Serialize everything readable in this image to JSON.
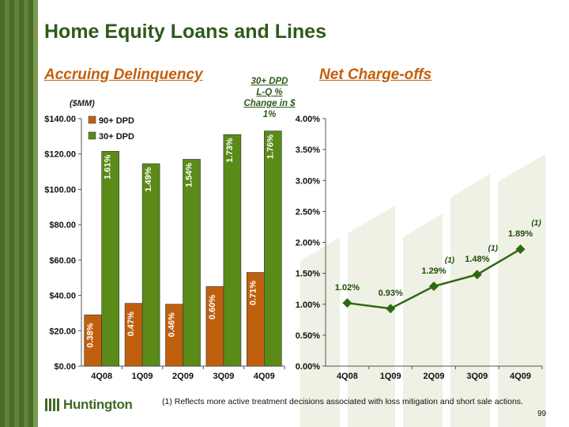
{
  "title": "Home Equity Loans and Lines",
  "left_subtitle": "Accruing Delinquency",
  "right_subtitle": "Net Charge-offs",
  "dpd_note": [
    "30+ DPD",
    "L-Q %",
    "Change in $",
    "1%"
  ],
  "units_label": "($MM)",
  "footnote": "(1) Reflects more active treatment decisions associated with loss mitigation and short sale actions.",
  "page_number": "99",
  "logo_text": "Huntington",
  "colors": {
    "orange": "#c0600f",
    "green": "#5a8a18",
    "title_green": "#2e5a1c",
    "subtitle_orange": "#c45f0a"
  },
  "chart_data": [
    {
      "type": "bar",
      "categories": [
        "4Q08",
        "1Q09",
        "2Q09",
        "3Q09",
        "4Q09"
      ],
      "ylim": [
        0,
        140
      ],
      "y_ticks": [
        "$0.00",
        "$20.00",
        "$40.00",
        "$60.00",
        "$80.00",
        "$100.00",
        "$120.00",
        "$140.00"
      ],
      "legend": "top-left",
      "series": [
        {
          "name": "90+ DPD",
          "values": [
            29,
            35.5,
            35,
            45,
            53
          ],
          "labels": [
            "0.38%",
            "0.47%",
            "0.46%",
            "0.60%",
            "0.71%"
          ],
          "color": "#c0600f"
        },
        {
          "name": "30+ DPD",
          "values": [
            121.5,
            114.5,
            117,
            131,
            133
          ],
          "labels": [
            "1.61%",
            "1.49%",
            "1.54%",
            "1.73%",
            "1.76%"
          ],
          "color": "#5a8a18"
        }
      ]
    },
    {
      "type": "line",
      "categories": [
        "4Q08",
        "1Q09",
        "2Q09",
        "3Q09",
        "4Q09"
      ],
      "values": [
        1.02,
        0.93,
        1.29,
        1.48,
        1.89
      ],
      "labels": [
        "1.02%",
        "0.93%",
        "1.29%",
        "1.48%",
        "1.89%"
      ],
      "footnote_marks": [
        "",
        "",
        "(1)",
        "(1)",
        "(1)"
      ],
      "ylim": [
        0,
        4
      ],
      "y_ticks": [
        "0.00%",
        "0.50%",
        "1.00%",
        "1.50%",
        "2.00%",
        "2.50%",
        "3.00%",
        "3.50%",
        "4.00%"
      ],
      "color": "#2d6a0f"
    }
  ]
}
